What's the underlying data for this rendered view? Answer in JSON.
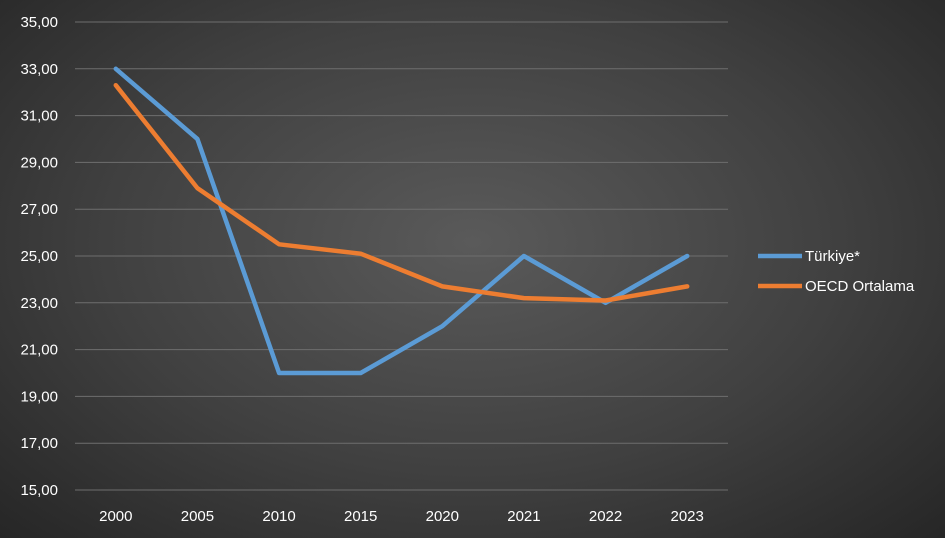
{
  "chart_data": {
    "type": "line",
    "categories": [
      "2000",
      "2005",
      "2010",
      "2015",
      "2020",
      "2021",
      "2022",
      "2023"
    ],
    "series": [
      {
        "name": "Türkiye*",
        "color": "#5b9bd5",
        "values": [
          33.0,
          30.0,
          20.0,
          20.0,
          22.0,
          25.0,
          23.0,
          25.0
        ]
      },
      {
        "name": "OECD Ortalama",
        "color": "#ed7d31",
        "values": [
          32.3,
          27.9,
          25.5,
          25.1,
          23.7,
          23.2,
          23.1,
          23.7
        ]
      }
    ],
    "yticks": [
      "15,00",
      "17,00",
      "19,00",
      "21,00",
      "23,00",
      "25,00",
      "27,00",
      "29,00",
      "31,00",
      "33,00",
      "35,00"
    ],
    "ylim": [
      15,
      35
    ],
    "grid": true,
    "legend_position": "right"
  }
}
